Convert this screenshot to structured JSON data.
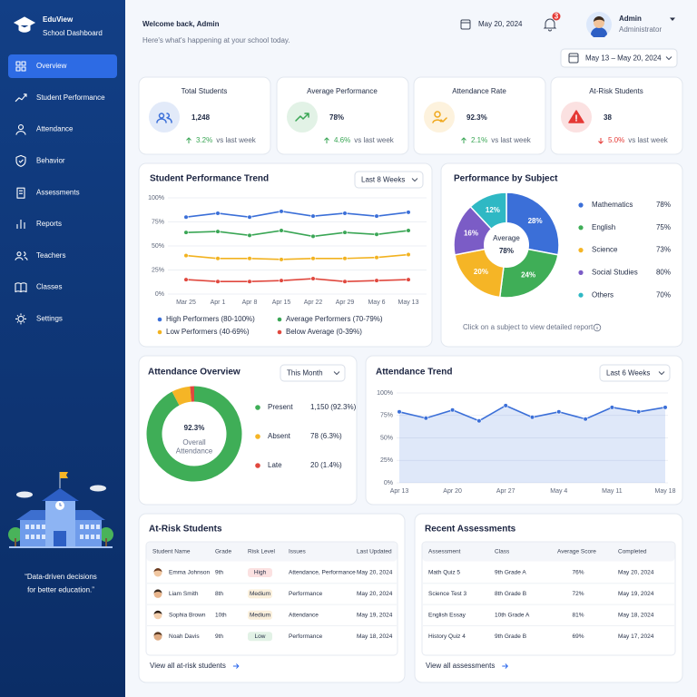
{
  "sidebar": {
    "brand": "EduView",
    "tagline": "School Dashboard",
    "nav": [
      "Overview",
      "Student Performance",
      "Attendance",
      "Behavior",
      "Assessments",
      "Reports",
      "Teachers",
      "Classes",
      "Settings"
    ],
    "active": 0,
    "quote": [
      "“Data-driven decisions",
      "for better education.”"
    ]
  },
  "header": {
    "title": "Welcome back, Admin",
    "subtitle": "Here's what's happening at your school today.",
    "date": "May 20, 2024",
    "notifications": 3,
    "user": "Admin",
    "role": "Administrator",
    "range": "May 13 – May 20, 2024"
  },
  "kpis": [
    {
      "label": "Total Students",
      "value": "1,248",
      "change": "3.2%",
      "trend": "up",
      "note": "vs last week",
      "color": "#3b6fd8"
    },
    {
      "label": "Average Performance",
      "value": "78%",
      "change": "4.6%",
      "trend": "up",
      "note": "vs last week",
      "color": "#3aa655"
    },
    {
      "label": "Attendance Rate",
      "value": "92.3%",
      "change": "2.1%",
      "trend": "up",
      "note": "vs last week",
      "color": "#f0a81c"
    },
    {
      "label": "At-Risk Students",
      "value": "38",
      "change": "5.0%",
      "trend": "down",
      "note": "vs last week",
      "color": "#e53935"
    }
  ],
  "performance_trend": {
    "type": "line",
    "title": "Student Performance Trend",
    "filter": "Last 8 Weeks",
    "categories": [
      "Mar 25",
      "Apr 1",
      "Apr 8",
      "Apr 15",
      "Apr 22",
      "Apr 29",
      "May 6",
      "May 13"
    ],
    "ylim": [
      0,
      100
    ],
    "yticks": [
      {
        "value": 0,
        "label": "0%"
      },
      {
        "value": 25,
        "label": "25%"
      },
      {
        "value": 50,
        "label": "50%"
      },
      {
        "value": 75,
        "label": "75%"
      },
      {
        "value": 100,
        "label": "100%"
      }
    ],
    "grid": true,
    "series": [
      {
        "name": "High Performers (80-100%)",
        "color": "#3b6fd8",
        "values": [
          80,
          84,
          80,
          86,
          81,
          84,
          81,
          85
        ]
      },
      {
        "name": "Average Performers (70-79%)",
        "color": "#3aa655",
        "values": [
          64,
          65,
          61,
          66,
          60,
          64,
          62,
          66
        ]
      },
      {
        "name": "Low Performers (40-69%)",
        "color": "#f2b21f",
        "values": [
          40,
          37,
          37,
          36,
          37,
          37,
          38,
          41
        ]
      },
      {
        "name": "Below Average (0-39%)",
        "color": "#e0483e",
        "values": [
          15,
          13,
          13,
          14,
          16,
          13,
          14,
          15
        ]
      }
    ]
  },
  "subject_performance": {
    "type": "pie",
    "title": "Performance by Subject",
    "center_label": "Average",
    "center_value": "78%",
    "categories": [
      "Mathematics",
      "English",
      "Science",
      "Social Studies",
      "Others"
    ],
    "values": [
      28,
      24,
      20,
      16,
      12
    ],
    "value_labels": [
      "28%",
      "24%",
      "20%",
      "16%",
      "12%"
    ],
    "colors": [
      "#3b6fd8",
      "#3fae57",
      "#f5b526",
      "#7b5cc6",
      "#2fb8c4"
    ],
    "scores": [
      "78%",
      "75%",
      "73%",
      "80%",
      "70%"
    ],
    "note": "Click on a subject to view detailed report"
  },
  "attendance_overview": {
    "type": "donut",
    "title": "Attendance Overview",
    "filter": "This Month",
    "center_value": "92.3%",
    "center_label": [
      "Overall",
      "Attendance"
    ],
    "categories": [
      "Present",
      "Absent",
      "Late"
    ],
    "values": [
      92.3,
      6.3,
      1.4
    ],
    "value_labels": [
      "1,150 (92.3%)",
      "78 (6.3%)",
      "20 (1.4%)"
    ],
    "colors": [
      "#3fae57",
      "#f5b526",
      "#e0483e"
    ]
  },
  "attendance_trend": {
    "type": "area",
    "title": "Attendance Trend",
    "filter": "Last 6 Weeks",
    "categories": [
      "Apr 13",
      null,
      "Apr 20",
      null,
      "Apr 27",
      null,
      "May 4",
      null,
      "May 11",
      null,
      "May 18"
    ],
    "values": [
      79,
      72,
      81,
      69,
      86,
      73,
      79,
      71,
      84,
      79,
      84
    ],
    "color": "#3b6fd8",
    "ylim": [
      0,
      100
    ],
    "yticks": [
      {
        "value": 0,
        "label": "0%"
      },
      {
        "value": 25,
        "label": "25%"
      },
      {
        "value": 50,
        "label": "50%"
      },
      {
        "value": 75,
        "label": "75%"
      },
      {
        "value": 100,
        "label": "100%"
      }
    ],
    "grid": true
  },
  "at_risk": {
    "title": "At-Risk Students",
    "columns": [
      "Student Name",
      "Grade",
      "Risk Level",
      "Issues",
      "Last Updated"
    ],
    "rows": [
      [
        "Emma Johnson",
        "9th",
        "High",
        "Attendance, Performance",
        "May 20, 2024"
      ],
      [
        "Liam Smith",
        "8th",
        "Medium",
        "Performance",
        "May 20, 2024"
      ],
      [
        "Sophia Brown",
        "10th",
        "Medium",
        "Attendance",
        "May 19, 2024"
      ],
      [
        "Noah Davis",
        "9th",
        "Low",
        "Performance",
        "May 18, 2024"
      ]
    ],
    "risk_colors": [
      "#e53935",
      "#e49a12",
      "#e49a12",
      "#3aa655"
    ],
    "link": "View all at-risk students"
  },
  "assessments": {
    "title": "Recent Assessments",
    "columns": [
      "Assessment",
      "Class",
      "Average Score",
      "Completed"
    ],
    "rows": [
      [
        "Math Quiz 5",
        "9th Grade A",
        "76%",
        "May 20, 2024"
      ],
      [
        "Science Test 3",
        "8th Grade B",
        "72%",
        "May 19, 2024"
      ],
      [
        "English Essay",
        "10th Grade A",
        "81%",
        "May 18, 2024"
      ],
      [
        "History Quiz 4",
        "9th Grade B",
        "69%",
        "May 17, 2024"
      ]
    ],
    "link": "View all assessments"
  }
}
